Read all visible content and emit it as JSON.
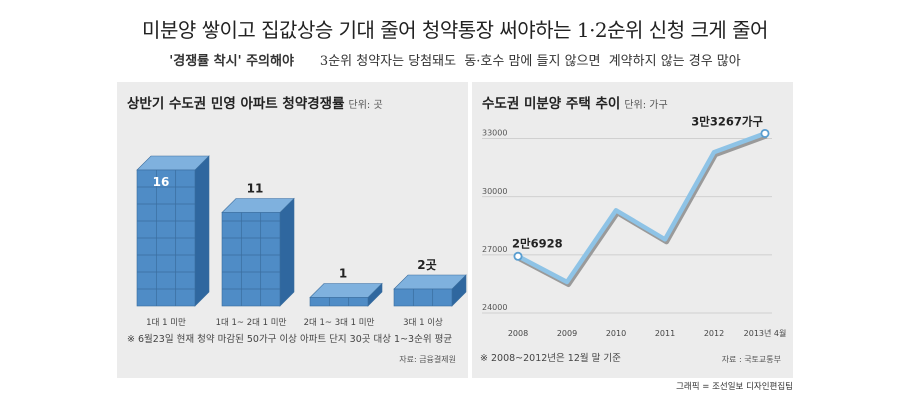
{
  "headline": "미분양 쌓이고 집값상승 기대 줄어 청약통장 써야하는 1·2순위 신청 크게 줄어",
  "subline": {
    "quote": "'경쟁률 착시' 주의해야",
    "text": "3순위 청약자는 당첨돼도  동·호수 맘에 들지 않으면  계약하지 않는 경우 많아"
  },
  "credit": "그래픽 = 조선일보 디자인편집팀",
  "chart_data": [
    {
      "type": "bar",
      "title": "상반기 수도권 민영 아파트 청약경쟁률",
      "unit": "단위: 곳",
      "categories": [
        "1대 1 미만",
        "1대 1~ 2대 1 미만",
        "2대 1~ 3대 1 미만",
        "3대 1 이상"
      ],
      "values": [
        16,
        11,
        1,
        2
      ],
      "value_labels": [
        "16",
        "11",
        "1",
        "2곳"
      ],
      "footnote": "※ 6월23일 현재 청약 마감된 50가구 이상 아파트 단지 30곳 대상 1~3순위 평균",
      "source": "자료: 금융결제원",
      "colors": {
        "front": "#4f8cc6",
        "top": "#7fb1de",
        "side": "#2f679f",
        "grid": "#3a6d9e"
      }
    },
    {
      "type": "line",
      "title": "수도권 미분양 주택 추이",
      "unit": "단위: 가구",
      "x": [
        "2008",
        "2009",
        "2010",
        "2011",
        "2012",
        "2013년 4월"
      ],
      "series": [
        {
          "values": [
            26928,
            25600,
            29300,
            27800,
            32300,
            33267
          ]
        }
      ],
      "yticks": [
        24000,
        27000,
        30000,
        33000
      ],
      "ylim": [
        24000,
        33600
      ],
      "annotations": [
        {
          "index": 0,
          "text": "2만6928"
        },
        {
          "index": 5,
          "text": "3만3267가구"
        }
      ],
      "footnote": "※ 2008~2012년은 12월 말 기준",
      "source": "자료 : 국토교통부",
      "colors": {
        "line": "#8ec3e6",
        "shadow": "#9a9a9a",
        "point": "#5a9ed0"
      }
    }
  ]
}
